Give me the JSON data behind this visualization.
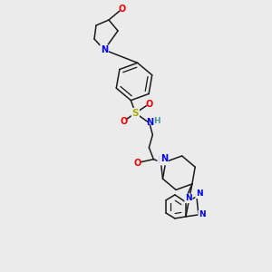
{
  "background_color": "#ebebeb",
  "bond_color": "#1a1a1a",
  "atom_colors": {
    "N": "#0000ee",
    "O": "#ee0000",
    "S": "#aaaa00",
    "H": "#4a9a9a",
    "C": "#1a1a1a"
  },
  "font_size": 7.0,
  "line_width": 1.1
}
